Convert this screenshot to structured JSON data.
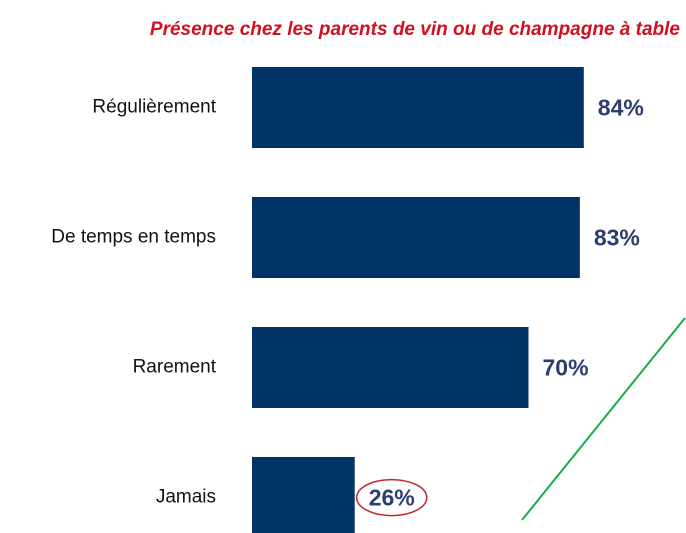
{
  "chart_data": {
    "type": "bar",
    "orientation": "horizontal",
    "title": "Présence chez les parents de vin ou de champagne à table",
    "categories": [
      "Régulièrement",
      "De temps en temps",
      "Rarement",
      "Jamais"
    ],
    "values": [
      84,
      83,
      70,
      26
    ],
    "value_labels": [
      "84%",
      "83%",
      "70%",
      "26%"
    ],
    "color": "#003466",
    "xlim": [
      0,
      100
    ]
  }
}
